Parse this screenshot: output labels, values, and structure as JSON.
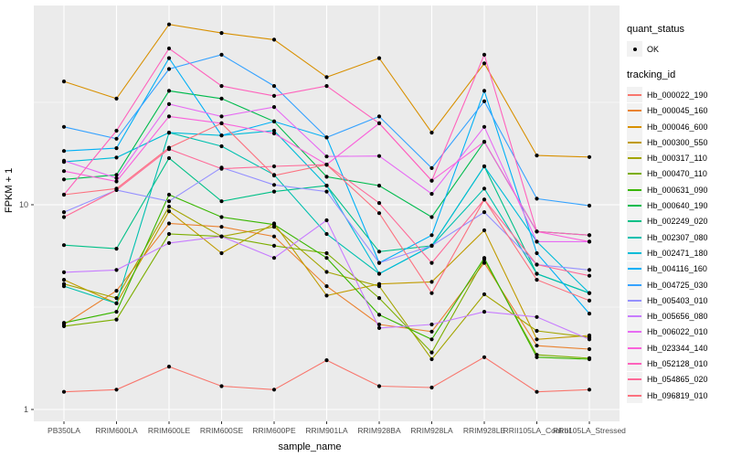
{
  "chart_data": {
    "type": "line",
    "title": "",
    "xlabel": "sample_name",
    "ylabel": "FPKM + 1",
    "y_scale": "log10",
    "y_ticks": [
      1,
      10
    ],
    "y_minor_ticks": [
      3.1623,
      31.623
    ],
    "ylim": [
      0.88,
      95
    ],
    "grid": "on",
    "legend_position": "right",
    "categories": [
      "PB350LA",
      "RRIM600LA",
      "RRIM600LE",
      "RRIM600SE",
      "RRIM600PE",
      "RRIM901LA",
      "RRIM928BA",
      "RRIM928LA",
      "RRIM928LE",
      "RRII105LA_Control",
      "RRII105LA_Stressed"
    ],
    "quant_status": {
      "title": "quant_status",
      "items": [
        {
          "label": "OK",
          "marker": "point"
        }
      ]
    },
    "tracking_id_title": "tracking_id",
    "series": [
      {
        "name": "Hb_000022_190",
        "color": "#F8766D",
        "values": [
          1.22,
          1.25,
          1.62,
          1.3,
          1.25,
          1.74,
          1.3,
          1.28,
          1.8,
          1.22,
          1.25
        ]
      },
      {
        "name": "Hb_000045_160",
        "color": "#EA8331",
        "values": [
          2.6,
          3.8,
          8.1,
          7.8,
          7.0,
          4.0,
          2.6,
          2.4,
          5.2,
          2.05,
          1.97
        ]
      },
      {
        "name": "Hb_000046_600",
        "color": "#D89000",
        "values": [
          40,
          33,
          76,
          69,
          64,
          42,
          52,
          22.5,
          49,
          17.4,
          17.1
        ]
      },
      {
        "name": "Hb_000300_550",
        "color": "#C09B00",
        "values": [
          4.3,
          3.3,
          9.3,
          5.8,
          8.1,
          3.6,
          4.1,
          4.2,
          7.5,
          2.2,
          2.3
        ]
      },
      {
        "name": "Hb_000317_110",
        "color": "#A3A500",
        "values": [
          4.1,
          3.5,
          9.8,
          7.0,
          7.8,
          4.7,
          4.0,
          1.76,
          3.65,
          2.42,
          2.25
        ]
      },
      {
        "name": "Hb_000470_110",
        "color": "#7CAE00",
        "values": [
          2.55,
          2.75,
          7.2,
          7.0,
          6.3,
          5.8,
          3.5,
          1.9,
          5.4,
          1.85,
          1.78
        ]
      },
      {
        "name": "Hb_000631_090",
        "color": "#39B600",
        "values": [
          2.65,
          3.0,
          11.2,
          8.7,
          8.0,
          5.5,
          2.9,
          2.2,
          5.5,
          1.8,
          1.76
        ]
      },
      {
        "name": "Hb_000640_190",
        "color": "#00BB4E",
        "values": [
          13.3,
          14.0,
          36,
          33,
          25.5,
          13.7,
          12.4,
          8.7,
          20.3,
          7.4,
          7.1
        ]
      },
      {
        "name": "Hb_002249_020",
        "color": "#00C087",
        "values": [
          6.35,
          6.1,
          16.9,
          10.4,
          11.6,
          12.4,
          5.9,
          6.3,
          15.4,
          4.6,
          3.7
        ]
      },
      {
        "name": "Hb_002307_080",
        "color": "#00C0AF",
        "values": [
          4.0,
          3.3,
          22.5,
          19.3,
          14.0,
          7.2,
          4.6,
          6.3,
          12.0,
          4.6,
          3.7
        ]
      },
      {
        "name": "Hb_002471_180",
        "color": "#00BCD8",
        "values": [
          16.2,
          17.0,
          22.5,
          21.8,
          23,
          12.4,
          4.6,
          6.3,
          15.4,
          6.6,
          3.7
        ]
      },
      {
        "name": "Hb_004116_160",
        "color": "#00B0F6",
        "values": [
          18.3,
          18.9,
          52,
          21.8,
          25.5,
          21.3,
          5.2,
          7.1,
          36,
          5.8,
          2.94
        ]
      },
      {
        "name": "Hb_004725_030",
        "color": "#35A2FF",
        "values": [
          24,
          21,
          46,
          54,
          38,
          21.3,
          27,
          15.1,
          32,
          10.7,
          9.9
        ]
      },
      {
        "name": "Hb_005403_010",
        "color": "#9590FF",
        "values": [
          9.2,
          11.8,
          10.4,
          15.2,
          12.5,
          11.6,
          5.2,
          6.3,
          9.2,
          5.1,
          4.8
        ]
      },
      {
        "name": "Hb_005656_080",
        "color": "#C77CFF",
        "values": [
          4.68,
          4.8,
          6.5,
          7.0,
          5.5,
          8.4,
          2.5,
          2.6,
          3.0,
          2.83,
          2.2
        ]
      },
      {
        "name": "Hb_006022_010",
        "color": "#E76BF3",
        "values": [
          16.4,
          13.5,
          31,
          27,
          30,
          17.2,
          17.3,
          11.3,
          24,
          6.6,
          6.6
        ]
      },
      {
        "name": "Hb_023344_140",
        "color": "#FA62DB",
        "values": [
          14.6,
          13.0,
          27,
          25,
          22.3,
          15.7,
          25,
          13.1,
          20.3,
          7.4,
          6.6
        ]
      },
      {
        "name": "Hb_052128_010",
        "color": "#FF62BC",
        "values": [
          11.2,
          23,
          58,
          38,
          34,
          38,
          25,
          13.1,
          54,
          7.4,
          7.1
        ]
      },
      {
        "name": "Hb_054865_020",
        "color": "#FF6A98",
        "values": [
          8.7,
          11.8,
          18.7,
          15.0,
          15.4,
          15.7,
          10.2,
          5.2,
          10.6,
          5.1,
          4.5
        ]
      },
      {
        "name": "Hb_096819_010",
        "color": "#FC717F",
        "values": [
          11.2,
          12.0,
          19.0,
          25.0,
          13.9,
          15.7,
          9.1,
          3.7,
          10.6,
          4.3,
          3.4
        ]
      }
    ],
    "colors": {
      "panel_background": "#EBEBEB",
      "gridline": "#FFFFFF",
      "legend_key_background": "#F2F2F2",
      "tick_text": "#4D4D4D",
      "point": "#000000"
    }
  }
}
